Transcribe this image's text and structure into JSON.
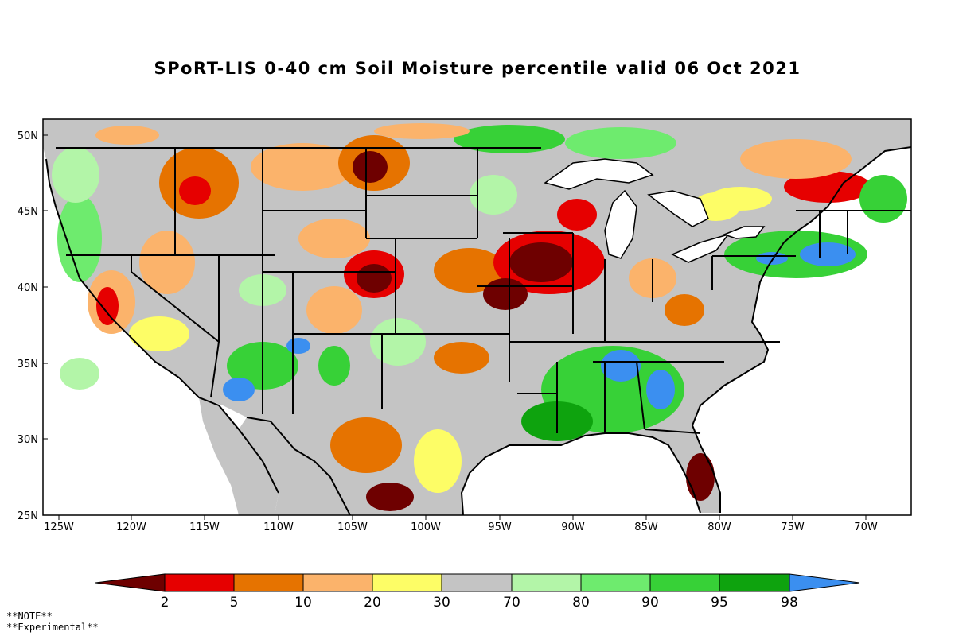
{
  "title": "SPoRT-LIS 0-40 cm Soil Moisture percentile valid 06 Oct 2021",
  "latitude_labels": [
    "50N",
    "45N",
    "40N",
    "35N",
    "30N",
    "25N"
  ],
  "longitude_labels": [
    "125W",
    "120W",
    "115W",
    "110W",
    "105W",
    "100W",
    "95W",
    "90W",
    "85W",
    "80W",
    "75W",
    "70W"
  ],
  "legend": {
    "bins": [
      {
        "color": "#6e0000"
      },
      {
        "color": "#e60000"
      },
      {
        "color": "#e67300"
      },
      {
        "color": "#fbb36b"
      },
      {
        "color": "#fdfd66"
      },
      {
        "color": "#c4c4c4"
      },
      {
        "color": "#b3f5a8"
      },
      {
        "color": "#6eeb6e"
      },
      {
        "color": "#37d137"
      },
      {
        "color": "#0ea30e"
      },
      {
        "color": "#3b8ff0"
      }
    ],
    "labels": [
      "2",
      "5",
      "10",
      "20",
      "30",
      "70",
      "80",
      "90",
      "95",
      "98"
    ]
  },
  "notes": [
    "**NOTE**",
    "**Experimental**"
  ]
}
